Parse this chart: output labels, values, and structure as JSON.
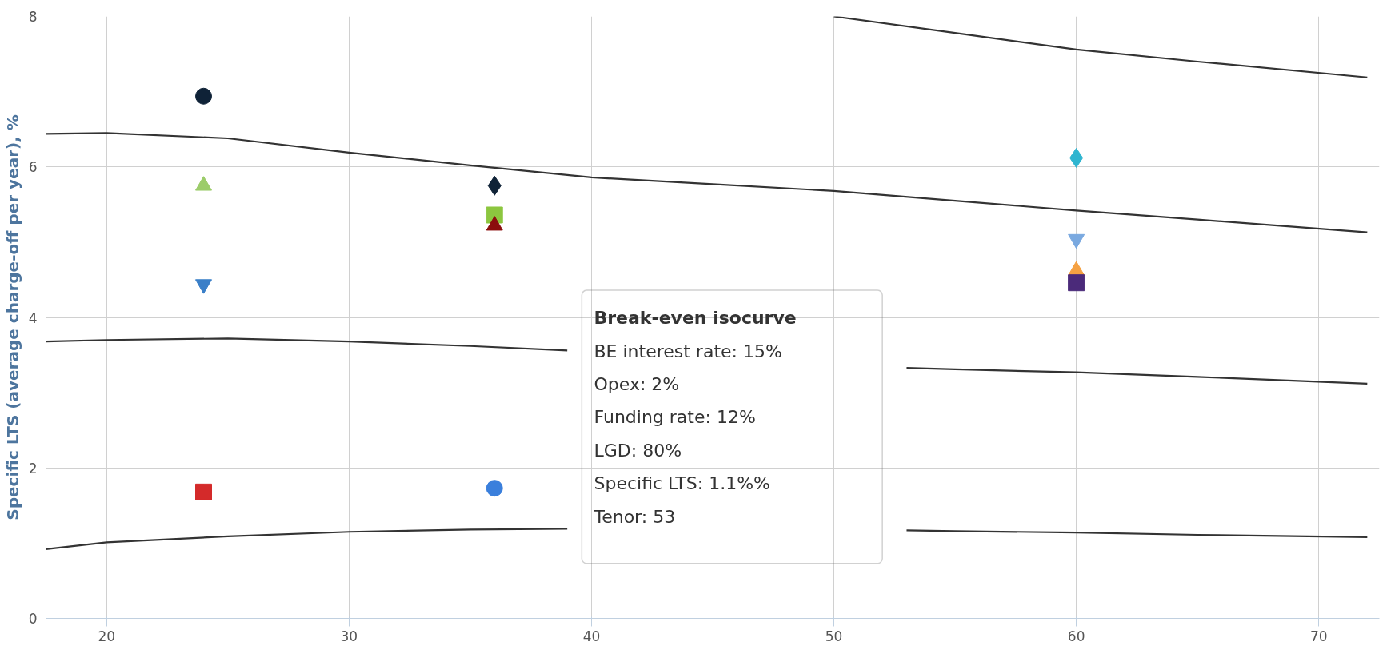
{
  "chart_data": {
    "type": "scatter",
    "ylabel": "Specific LTS (average charge-off per year), %",
    "xlim": [
      17.5,
      72.5
    ],
    "xticks": [
      20,
      30,
      40,
      50,
      60,
      70
    ],
    "ylim": [
      0,
      8
    ],
    "yticks": [
      0,
      2,
      4,
      6,
      8
    ],
    "grid": true,
    "series": [
      {
        "type": "line",
        "color": "#333333",
        "x": [
          50,
          55,
          60,
          65,
          72
        ],
        "values": [
          8.0,
          7.78,
          7.56,
          7.4,
          7.19
        ]
      },
      {
        "type": "line",
        "color": "#333333",
        "x": [
          17.5,
          20,
          25,
          30,
          35,
          40,
          45,
          50,
          55,
          60,
          65,
          72
        ],
        "values": [
          6.44,
          6.45,
          6.38,
          6.19,
          6.02,
          5.86,
          5.77,
          5.68,
          5.55,
          5.42,
          5.3,
          5.13
        ]
      },
      {
        "type": "line",
        "color": "#333333",
        "x": [
          17.5,
          20,
          25,
          30,
          35,
          39,
          40,
          45,
          50,
          53,
          55,
          60,
          65,
          72
        ],
        "values": [
          3.68,
          3.7,
          3.72,
          3.68,
          3.62,
          3.56,
          null,
          null,
          null,
          3.33,
          3.31,
          3.27,
          3.21,
          3.12
        ]
      },
      {
        "type": "line",
        "color": "#333333",
        "x": [
          17.5,
          20,
          25,
          30,
          35,
          39,
          40,
          45,
          50,
          53,
          55,
          60,
          65,
          72
        ],
        "values": [
          0.92,
          1.01,
          1.09,
          1.15,
          1.18,
          1.19,
          null,
          null,
          null,
          1.17,
          1.16,
          1.14,
          1.11,
          1.08
        ]
      },
      {
        "color": "#0f2237",
        "marker": "circle",
        "x": [
          24
        ],
        "values": [
          6.94
        ]
      },
      {
        "color": "#9ccc6a",
        "marker": "triangle",
        "x": [
          24
        ],
        "values": [
          5.75
        ]
      },
      {
        "color": "#3a7fc8",
        "marker": "triangle-down",
        "x": [
          24
        ],
        "values": [
          4.44
        ]
      },
      {
        "color": "#d42a2a",
        "marker": "square",
        "x": [
          24
        ],
        "values": [
          1.68
        ]
      },
      {
        "color": "#0f2237",
        "marker": "diamond",
        "x": [
          36
        ],
        "values": [
          5.75
        ]
      },
      {
        "color": "#8cc63f",
        "marker": "square",
        "x": [
          36
        ],
        "values": [
          5.36
        ]
      },
      {
        "color": "#8b0d0d",
        "marker": "triangle",
        "x": [
          36
        ],
        "values": [
          5.22
        ]
      },
      {
        "color": "#3a7fdc",
        "marker": "circle",
        "x": [
          36
        ],
        "values": [
          1.73
        ]
      },
      {
        "color": "#2fb5d0",
        "marker": "diamond",
        "x": [
          60
        ],
        "values": [
          6.12
        ]
      },
      {
        "color": "#7aa9e0",
        "marker": "triangle-down",
        "x": [
          60
        ],
        "values": [
          5.04
        ]
      },
      {
        "color": "#f5a142",
        "marker": "triangle",
        "x": [
          60
        ],
        "values": [
          4.62
        ]
      },
      {
        "color": "#4b2a7a",
        "marker": "square",
        "x": [
          60
        ],
        "values": [
          4.46
        ]
      }
    ],
    "annotations": [
      "Break-even isocurve",
      "BE interest rate: 15%",
      "Opex: 2%",
      "Funding rate: 12%",
      "LGD: 80%",
      "Specific LTS: 1.1%%",
      "Tenor: 53"
    ]
  }
}
